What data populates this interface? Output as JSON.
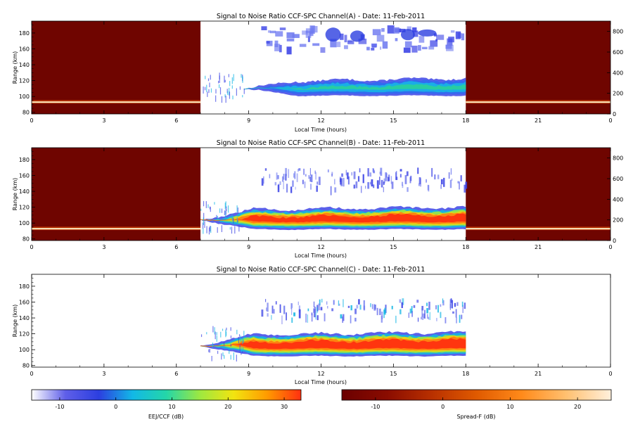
{
  "chart_data": [
    {
      "type": "heatmap",
      "title": "Signal to Noise Ratio CCF-SPC Channel(A) - Date: 11-Feb-2011",
      "xlabel": "Local Time (hours)",
      "ylabel": "Range (km)",
      "xlim": [
        0,
        24
      ],
      "ylim": [
        78,
        195
      ],
      "xticks": [
        "0",
        "3",
        "6",
        "9",
        "12",
        "15",
        "18",
        "21",
        "0"
      ],
      "yticks": [
        80,
        100,
        120,
        140,
        160,
        180
      ],
      "ylim_right": [
        0,
        900
      ],
      "yticks_right": [
        0,
        200,
        400,
        600,
        800
      ],
      "night_panels": [
        [
          0,
          7
        ],
        [
          18,
          24
        ]
      ],
      "night_band_range_km": 92,
      "day_data_window": [
        7,
        18
      ],
      "eej_layer_km": [
        100,
        120
      ],
      "spread_layer_km": [
        160,
        190
      ],
      "eej_peak_snr_db": 10,
      "spread_snr_db": -8
    },
    {
      "type": "heatmap",
      "title": "Signal to Noise Ratio CCF-SPC Channel(B) - Date: 11-Feb-2011",
      "xlabel": "Local Time (hours)",
      "ylabel": "Range (km)",
      "xlim": [
        0,
        24
      ],
      "ylim": [
        78,
        195
      ],
      "xticks": [
        "0",
        "3",
        "6",
        "9",
        "12",
        "15",
        "18",
        "21",
        "0"
      ],
      "yticks": [
        80,
        100,
        120,
        140,
        160,
        180
      ],
      "ylim_right": [
        0,
        900
      ],
      "yticks_right": [
        0,
        200,
        400,
        600,
        800
      ],
      "night_panels": [
        [
          0,
          7
        ],
        [
          18,
          24
        ]
      ],
      "night_band_range_km": 92,
      "day_data_window": [
        7,
        18
      ],
      "eej_layer_km": [
        92,
        118
      ],
      "spread_layer_km": [
        145,
        170
      ],
      "eej_peak_snr_db": 30,
      "spread_snr_db": -10
    },
    {
      "type": "heatmap",
      "title": "Signal to Noise Ratio CCF-SPC Channel(C) - Date: 11-Feb-2011",
      "xlabel": "Local Time (hours)",
      "ylabel": "Range (km)",
      "xlim": [
        0,
        24
      ],
      "ylim": [
        78,
        195
      ],
      "xticks": [
        "0",
        "3",
        "6",
        "9",
        "12",
        "15",
        "18",
        "21",
        "0"
      ],
      "yticks": [
        80,
        100,
        120,
        140,
        160,
        180
      ],
      "day_data_window": [
        7,
        18
      ],
      "eej_layer_km": [
        92,
        120
      ],
      "spread_layer_km": [
        140,
        165
      ],
      "eej_peak_snr_db": 30,
      "spread_snr_db": 0
    }
  ],
  "colorbars": [
    {
      "label": "EEJ/CCF (dB)",
      "range": [
        -15,
        33
      ],
      "ticks": [
        -10,
        0,
        10,
        20,
        30
      ],
      "stops": [
        "#ffffff",
        "#5f5fe8",
        "#2c3fe0",
        "#12b8e6",
        "#24d6a8",
        "#9ee840",
        "#f2e410",
        "#ff9a00",
        "#ff3010"
      ]
    },
    {
      "label": "Spread-F (dB)",
      "range": [
        -15,
        25
      ],
      "ticks": [
        -10,
        0,
        10,
        20
      ],
      "stops": [
        "#6b0000",
        "#8a0c00",
        "#b83000",
        "#e05a00",
        "#ff8a1a",
        "#ffc070",
        "#fff0dc"
      ]
    }
  ]
}
